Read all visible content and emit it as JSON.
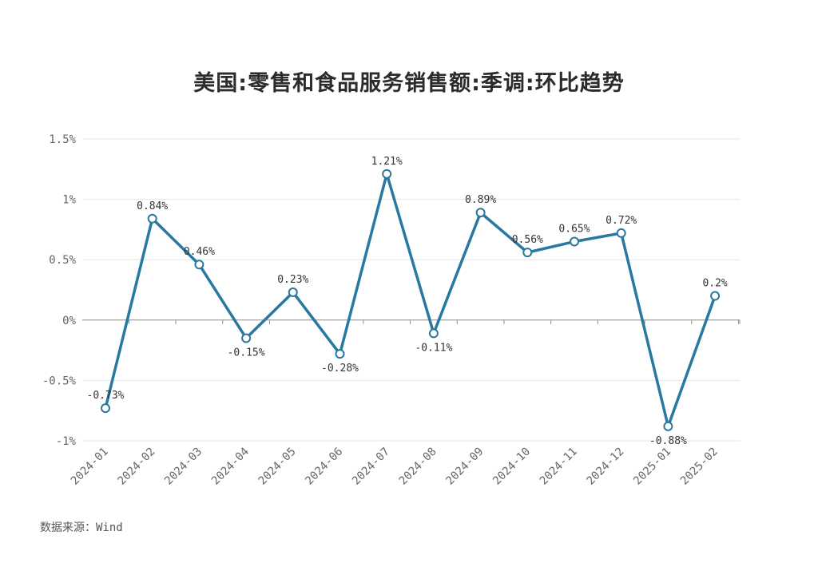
{
  "chart_data": {
    "type": "line",
    "title": "美国:零售和食品服务销售额:季调:环比趋势",
    "categories": [
      "2024-01",
      "2024-02",
      "2024-03",
      "2024-04",
      "2024-05",
      "2024-06",
      "2024-07",
      "2024-08",
      "2024-09",
      "2024-10",
      "2024-11",
      "2024-12",
      "2025-01",
      "2025-02"
    ],
    "series": [
      {
        "values": [
          -0.73,
          0.84,
          0.46,
          -0.15,
          0.23,
          -0.28,
          1.21,
          -0.11,
          0.89,
          0.56,
          0.65,
          0.72,
          -0.88,
          0.2
        ],
        "labels": [
          "-0.73%",
          "0.84%",
          "0.46%",
          "-0.15%",
          "0.23%",
          "-0.28%",
          "1.21%",
          "-0.11%",
          "0.89%",
          "0.56%",
          "0.65%",
          "0.72%",
          "-0.88%",
          "0.2%"
        ]
      }
    ],
    "ylim": [
      -1,
      1.5
    ],
    "y_ticks": [
      {
        "value": 1.5,
        "label": "1.5%"
      },
      {
        "value": 1,
        "label": "1%"
      },
      {
        "value": 0.5,
        "label": "0.5%"
      },
      {
        "value": 0,
        "label": "0%"
      },
      {
        "value": -0.5,
        "label": "-0.5%"
      },
      {
        "value": -1,
        "label": "-1%"
      }
    ],
    "grid": true,
    "legend": "none",
    "line_color": "#2878a0",
    "marker_fill": "#ffffff"
  },
  "source_note": "数据来源：Wind"
}
